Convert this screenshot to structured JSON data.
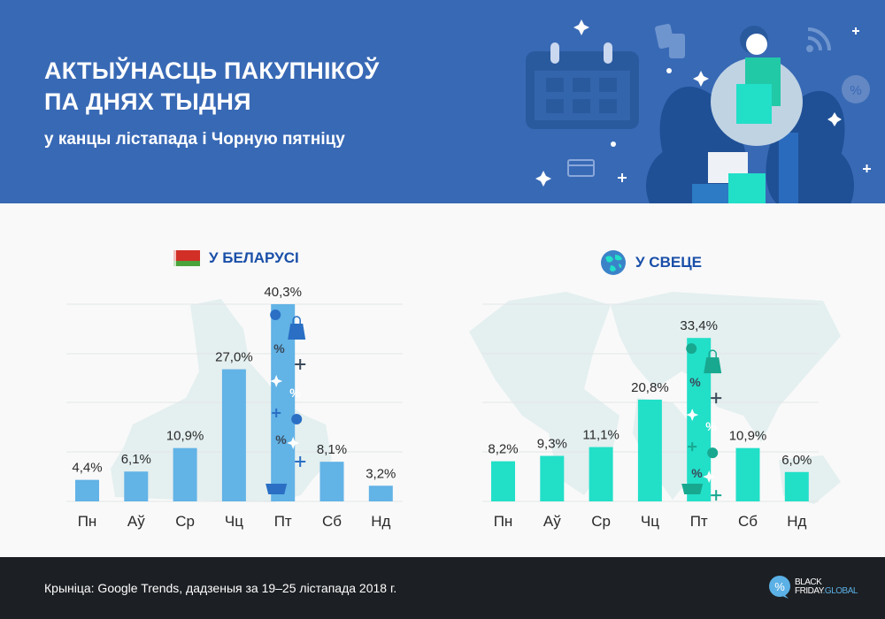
{
  "header": {
    "title_line1": "АКТЫЎНАСЦЬ ПАКУПНІКОЎ",
    "title_line2": "ПА ДНЯХ ТЫДНЯ",
    "subtitle": "у канцы лістапада і Чорную пятніцу"
  },
  "footer": {
    "source": "Крыніца: Google Trends, дадзеныя за 19–25 лістапада 2018 г.",
    "logo_line1": "BLACK",
    "logo_line2a": "FRIDAY",
    "logo_line2b": ".GLOBAL"
  },
  "colors": {
    "header_bg": "#3869b5",
    "belarus_bar": "#62b3e6",
    "world_bar": "#22dfc8",
    "heading_text": "#1a4fa8",
    "footer_bg": "#1c1f23"
  },
  "chart_data": [
    {
      "type": "bar",
      "title": "У БЕЛАРУСІ",
      "icon": "belarus-flag-icon",
      "categories": [
        "Пн",
        "Аў",
        "Ср",
        "Чц",
        "Пт",
        "Сб",
        "Нд"
      ],
      "values": [
        4.4,
        6.1,
        10.9,
        27.0,
        40.3,
        8.1,
        3.2
      ],
      "labels": [
        "4,4%",
        "6,1%",
        "10,9%",
        "27,0%",
        "40,3%",
        "8,1%",
        "3,2%"
      ],
      "highlight": "Пт",
      "ylim": [
        0,
        40.3
      ],
      "grid": true,
      "xlabel": "",
      "ylabel": ""
    },
    {
      "type": "bar",
      "title": "У СВЕЦЕ",
      "icon": "globe-icon",
      "categories": [
        "Пн",
        "Аў",
        "Ср",
        "Чц",
        "Пт",
        "Сб",
        "Нд"
      ],
      "values": [
        8.2,
        9.3,
        11.1,
        20.8,
        33.4,
        10.9,
        6.0
      ],
      "labels": [
        "8,2%",
        "9,3%",
        "11,1%",
        "20,8%",
        "33,4%",
        "10,9%",
        "6,0%"
      ],
      "highlight": "Пт",
      "ylim": [
        0,
        40.3
      ],
      "grid": true,
      "xlabel": "",
      "ylabel": ""
    }
  ]
}
